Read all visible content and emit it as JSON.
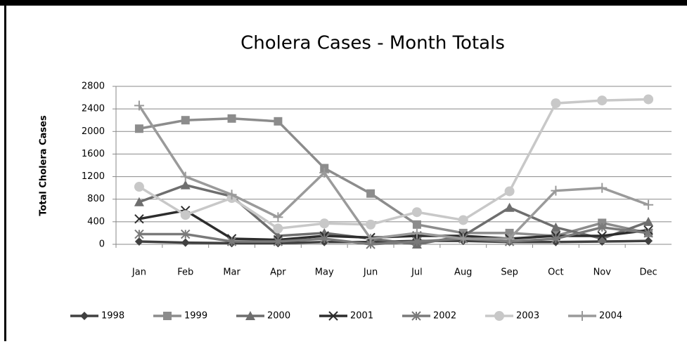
{
  "chart_data": {
    "type": "line",
    "title": "Cholera Cases - Month Totals",
    "y_label": "Total Cholera Cases",
    "categories": [
      "Jan",
      "Feb",
      "Mar",
      "Apr",
      "May",
      "Jun",
      "Jul",
      "Aug",
      "Sep",
      "Oct",
      "Nov",
      "Dec"
    ],
    "ylim": [
      0,
      2800
    ],
    "yticks": [
      0,
      400,
      800,
      1200,
      1600,
      2000,
      2400,
      2800
    ],
    "grid": true,
    "legend": "bottom",
    "series": [
      {
        "name": "1998",
        "color": "#404040",
        "marker": "diamond",
        "values": [
          50,
          30,
          20,
          20,
          40,
          40,
          60,
          60,
          40,
          40,
          50,
          60
        ]
      },
      {
        "name": "1999",
        "color": "#8c8c8c",
        "marker": "square",
        "values": [
          2050,
          2200,
          2230,
          2180,
          1350,
          900,
          350,
          200,
          200,
          150,
          380,
          200
        ]
      },
      {
        "name": "2000",
        "color": "#6e6e6e",
        "marker": "triangle",
        "values": [
          750,
          1050,
          850,
          150,
          200,
          100,
          0,
          150,
          650,
          300,
          100,
          400
        ]
      },
      {
        "name": "2001",
        "color": "#2d2d2d",
        "marker": "x",
        "values": [
          450,
          600,
          100,
          80,
          150,
          120,
          150,
          150,
          100,
          150,
          150,
          250
        ]
      },
      {
        "name": "2002",
        "color": "#7a7a7a",
        "marker": "star",
        "values": [
          180,
          180,
          50,
          50,
          100,
          0,
          50,
          100,
          50,
          100,
          300,
          200
        ]
      },
      {
        "name": "2003",
        "color": "#c8c8c8",
        "marker": "circle",
        "values": [
          1020,
          520,
          820,
          280,
          370,
          350,
          570,
          430,
          940,
          2500,
          2550,
          2570
        ]
      },
      {
        "name": "2004",
        "color": "#9a9a9a",
        "marker": "plus",
        "values": [
          2460,
          1200,
          880,
          480,
          1270,
          100,
          200,
          100,
          100,
          950,
          1000,
          700
        ]
      }
    ]
  }
}
